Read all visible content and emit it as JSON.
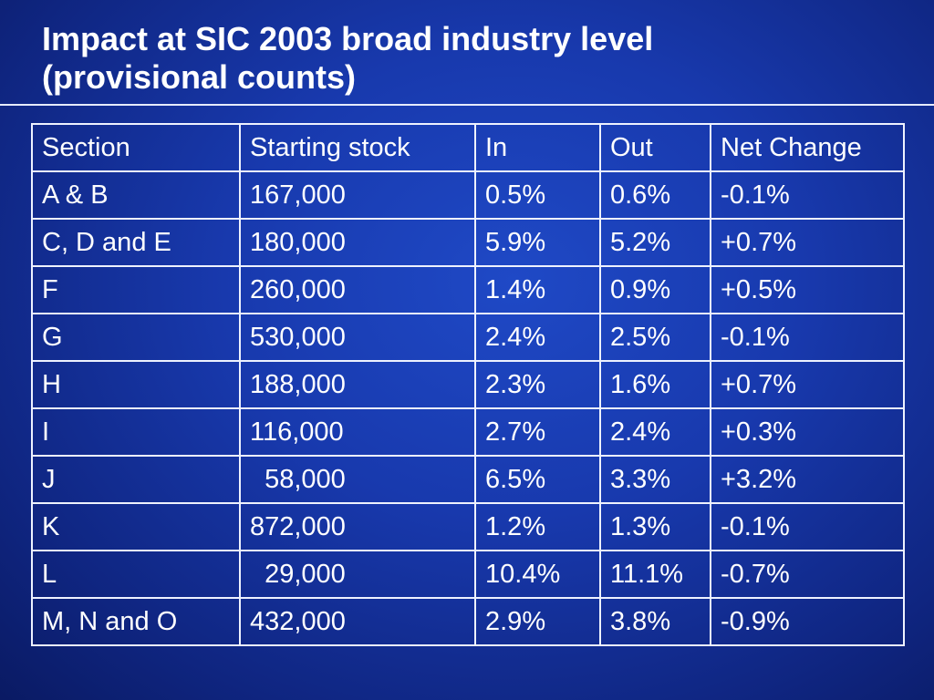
{
  "slide": {
    "title_line1": "Impact at SIC 2003 broad industry level",
    "title_line2": "(provisional counts)"
  },
  "table": {
    "headers": [
      "Section",
      "Starting stock",
      "In",
      "Out",
      "Net Change"
    ],
    "rows": [
      [
        "A & B",
        "167,000",
        "0.5%",
        "0.6%",
        "-0.1%"
      ],
      [
        "C, D and E",
        "180,000",
        "5.9%",
        "5.2%",
        "+0.7%"
      ],
      [
        "F",
        "260,000",
        "1.4%",
        "0.9%",
        "+0.5%"
      ],
      [
        "G",
        "530,000",
        "2.4%",
        "2.5%",
        "-0.1%"
      ],
      [
        "H",
        "188,000",
        "2.3%",
        "1.6%",
        "+0.7%"
      ],
      [
        "I",
        "116,000",
        "2.7%",
        "2.4%",
        "+0.3%"
      ],
      [
        "J",
        "  58,000",
        "6.5%",
        "3.3%",
        "+3.2%"
      ],
      [
        "K",
        "872,000",
        "1.2%",
        "1.3%",
        "-0.1%"
      ],
      [
        "L",
        "  29,000",
        "10.4%",
        "11.1%",
        "-0.7%"
      ],
      [
        "M, N and O",
        "432,000",
        "2.9%",
        "3.8%",
        "-0.9%"
      ]
    ]
  }
}
